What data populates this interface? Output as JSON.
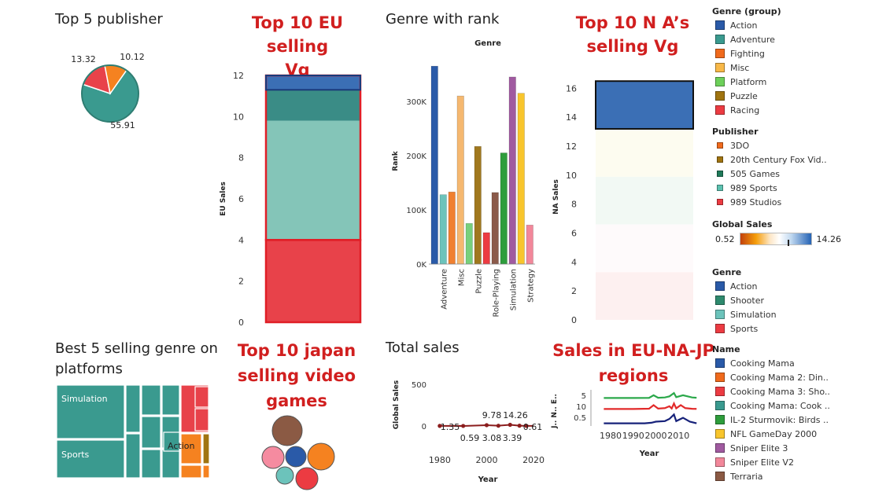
{
  "titles": {
    "top5_publisher": "Top 5 publisher",
    "eu_selling": [
      "Top 10 EU selling",
      "Vg"
    ],
    "genre_rank": "Genre with rank",
    "na_selling": [
      "Top 10 N A’s",
      "selling Vg"
    ],
    "best5_genre": [
      "Best 5 selling genre on",
      "platforms"
    ],
    "japan_selling": [
      "Top 10 japan",
      "selling video",
      "games"
    ],
    "total_sales": "Total sales",
    "regions": [
      "Sales in EU-NA-JP",
      "regions"
    ]
  },
  "chart_data": [
    {
      "type": "pie",
      "name": "top5_publisher",
      "labels": [
        "55.91",
        "13.32",
        "10.12"
      ],
      "values": [
        55.91,
        13.32,
        10.12
      ],
      "colors": [
        "#3a9a8f",
        "#e8424a",
        "#f58220"
      ]
    },
    {
      "type": "bar",
      "name": "eu_selling",
      "stacked": true,
      "ylabel": "EU Sales",
      "ylim": [
        0,
        12
      ],
      "yticks": [
        "0",
        "2",
        "4",
        "6",
        "8",
        "10",
        "12"
      ],
      "segments": [
        {
          "value": 4.0,
          "color": "#e8424a"
        },
        {
          "value": 5.8,
          "color": "#84c5b8"
        },
        {
          "value": 1.5,
          "color": "#3a8c86"
        },
        {
          "value": 0.7,
          "color": "#3b6fb5"
        }
      ]
    },
    {
      "type": "bar",
      "name": "genre_rank",
      "header": "Genre",
      "ylabel": "Rank",
      "ylim": [
        0,
        400000
      ],
      "yticks": [
        "0K",
        "100K",
        "200K",
        "300K"
      ],
      "ytick_values": [
        0,
        100000,
        200000,
        300000
      ],
      "categories": [
        "Adventure",
        "Misc",
        "Puzzle",
        "Role-Playing",
        "Simulation",
        "Strategy"
      ],
      "bars": [
        {
          "value": 365000,
          "color": "#2a5aa8"
        },
        {
          "value": 128000,
          "color": "#6cc3bb"
        },
        {
          "value": 133000,
          "color": "#f08030"
        },
        {
          "value": 310000,
          "color": "#f5b870"
        },
        {
          "value": 75000,
          "color": "#77d07c"
        },
        {
          "value": 217000,
          "color": "#a0781e"
        },
        {
          "value": 58000,
          "color": "#ec3b42"
        },
        {
          "value": 132000,
          "color": "#8b5a4a"
        },
        {
          "value": 205000,
          "color": "#2e9d3c"
        },
        {
          "value": 345000,
          "color": "#a05aa0"
        },
        {
          "value": 315000,
          "color": "#f8c52c"
        },
        {
          "value": 72000,
          "color": "#f2879a"
        }
      ]
    },
    {
      "type": "bar",
      "name": "na_selling",
      "stacked": true,
      "ylabel": "NA Sales",
      "ylim": [
        0,
        17
      ],
      "yticks": [
        "0",
        "2",
        "4",
        "6",
        "8",
        "10",
        "12",
        "14",
        "16"
      ],
      "segments": [
        {
          "value": 3.3,
          "color": "#fdf0f0"
        },
        {
          "value": 3.3,
          "color": "#fefafb"
        },
        {
          "value": 3.3,
          "color": "#f2f9f4"
        },
        {
          "value": 3.3,
          "color": "#fdfcf0"
        },
        {
          "value": 3.3,
          "color": "#3b6fb5"
        }
      ]
    },
    {
      "type": "heatmap",
      "name": "best5_genre",
      "labels": [
        "Simulation",
        "Sports",
        "Action"
      ]
    },
    {
      "type": "scatter",
      "name": "japan_selling",
      "colors": [
        "#8b5a44",
        "#f58ba0",
        "#2a5aa8",
        "#f58220",
        "#6cc3bb",
        "#ec3b42"
      ]
    },
    {
      "type": "line",
      "name": "total_sales",
      "xlabel": "Year",
      "ylabel": "Global Sales",
      "xlim": [
        1972,
        2024
      ],
      "ylim": [
        0,
        500
      ],
      "xticks": [
        1980,
        2000,
        2020
      ],
      "yticks": [
        0,
        500
      ],
      "x": [
        1980,
        1990,
        2000,
        2005,
        2010,
        2014,
        2017,
        2020
      ],
      "y": [
        1.35,
        0.59,
        9.78,
        3.08,
        14.26,
        3.39,
        0.61,
        0.61
      ],
      "labels": [
        "1.35",
        "0.59",
        "9.78",
        "3.08",
        "14.26",
        "3.39",
        "0.61"
      ]
    },
    {
      "type": "line",
      "name": "regions",
      "xlabel": "Year",
      "ylabel": "J.. N.. E..",
      "xlim": [
        1972,
        2020
      ],
      "xticks": [
        1980,
        1990,
        2000,
        2010
      ],
      "bands": [
        {
          "ticks": [
            "5"
          ],
          "color": "#2ba84a",
          "x": [
            1977,
            1990,
            1997,
            1999,
            2001,
            2004,
            2006,
            2008,
            2009,
            2012,
            2016,
            2018
          ],
          "y": [
            4.0,
            4.0,
            4.1,
            6.5,
            4.2,
            4.5,
            5.5,
            8.5,
            4.8,
            6.5,
            4.5,
            4.2
          ]
        },
        {
          "ticks": [
            "10"
          ],
          "color": "#e22a2a",
          "x": [
            1977,
            1990,
            1997,
            1999,
            2001,
            2004,
            2006,
            2007,
            2008,
            2009,
            2011,
            2013,
            2016,
            2018
          ],
          "y": [
            4.0,
            4.0,
            4.3,
            7.5,
            4.4,
            4.8,
            6.5,
            4.5,
            9.0,
            4.6,
            7.5,
            4.8,
            4.2,
            4.1
          ]
        },
        {
          "ticks": [
            "0.5"
          ],
          "color": "#17227a",
          "x": [
            1977,
            1995,
            1998,
            2000,
            2004,
            2006,
            2008,
            2009,
            2012,
            2015,
            2018
          ],
          "y": [
            0.1,
            0.1,
            0.15,
            0.25,
            0.3,
            0.5,
            0.9,
            0.3,
            0.6,
            0.25,
            0.1
          ]
        }
      ]
    }
  ],
  "legends": {
    "genre_group": {
      "title": "Genre (group)",
      "items": [
        {
          "label": "Action",
          "color": "#2a5aa8"
        },
        {
          "label": "Adventure",
          "color": "#3a9a8f"
        },
        {
          "label": "Fighting",
          "color": "#f06a1c"
        },
        {
          "label": "Misc",
          "color": "#f8b848"
        },
        {
          "label": "Platform",
          "color": "#6dd05a"
        },
        {
          "label": "Puzzle",
          "color": "#a07410"
        },
        {
          "label": "Racing",
          "color": "#ec3b42"
        }
      ]
    },
    "publisher": {
      "title": "Publisher",
      "items": [
        {
          "label": "3DO",
          "color": "#f06a1c"
        },
        {
          "label": "20th Century Fox Vid..",
          "color": "#a07410"
        },
        {
          "label": "505 Games",
          "color": "#1f7a5a"
        },
        {
          "label": "989 Sports",
          "color": "#5cc1b0"
        },
        {
          "label": "989 Studios",
          "color": "#ec3b42"
        }
      ]
    },
    "global_sales": {
      "title": "Global Sales",
      "min": "0.52",
      "max": "14.26"
    },
    "genre": {
      "title": "Genre",
      "items": [
        {
          "label": "Action",
          "color": "#2a5aa8"
        },
        {
          "label": "Shooter",
          "color": "#2e8a6e"
        },
        {
          "label": "Simulation",
          "color": "#6cc3bb"
        },
        {
          "label": "Sports",
          "color": "#ec3b42"
        }
      ]
    },
    "name": {
      "title": "Name",
      "items": [
        {
          "label": "Cooking Mama",
          "color": "#2a5aa8"
        },
        {
          "label": "Cooking Mama 2: Din..",
          "color": "#f06a1c"
        },
        {
          "label": "Cooking Mama 3: Sho..",
          "color": "#ec3b42"
        },
        {
          "label": "Cooking Mama: Cook ..",
          "color": "#3a9a8f"
        },
        {
          "label": "IL-2 Sturmovik: Birds ..",
          "color": "#2e9d3c"
        },
        {
          "label": "NFL GameDay 2000",
          "color": "#f8c52c"
        },
        {
          "label": "Sniper Elite 3",
          "color": "#a05aa0"
        },
        {
          "label": "Sniper Elite V2",
          "color": "#f2879a"
        },
        {
          "label": "Terraria",
          "color": "#8b5a44"
        }
      ]
    }
  }
}
